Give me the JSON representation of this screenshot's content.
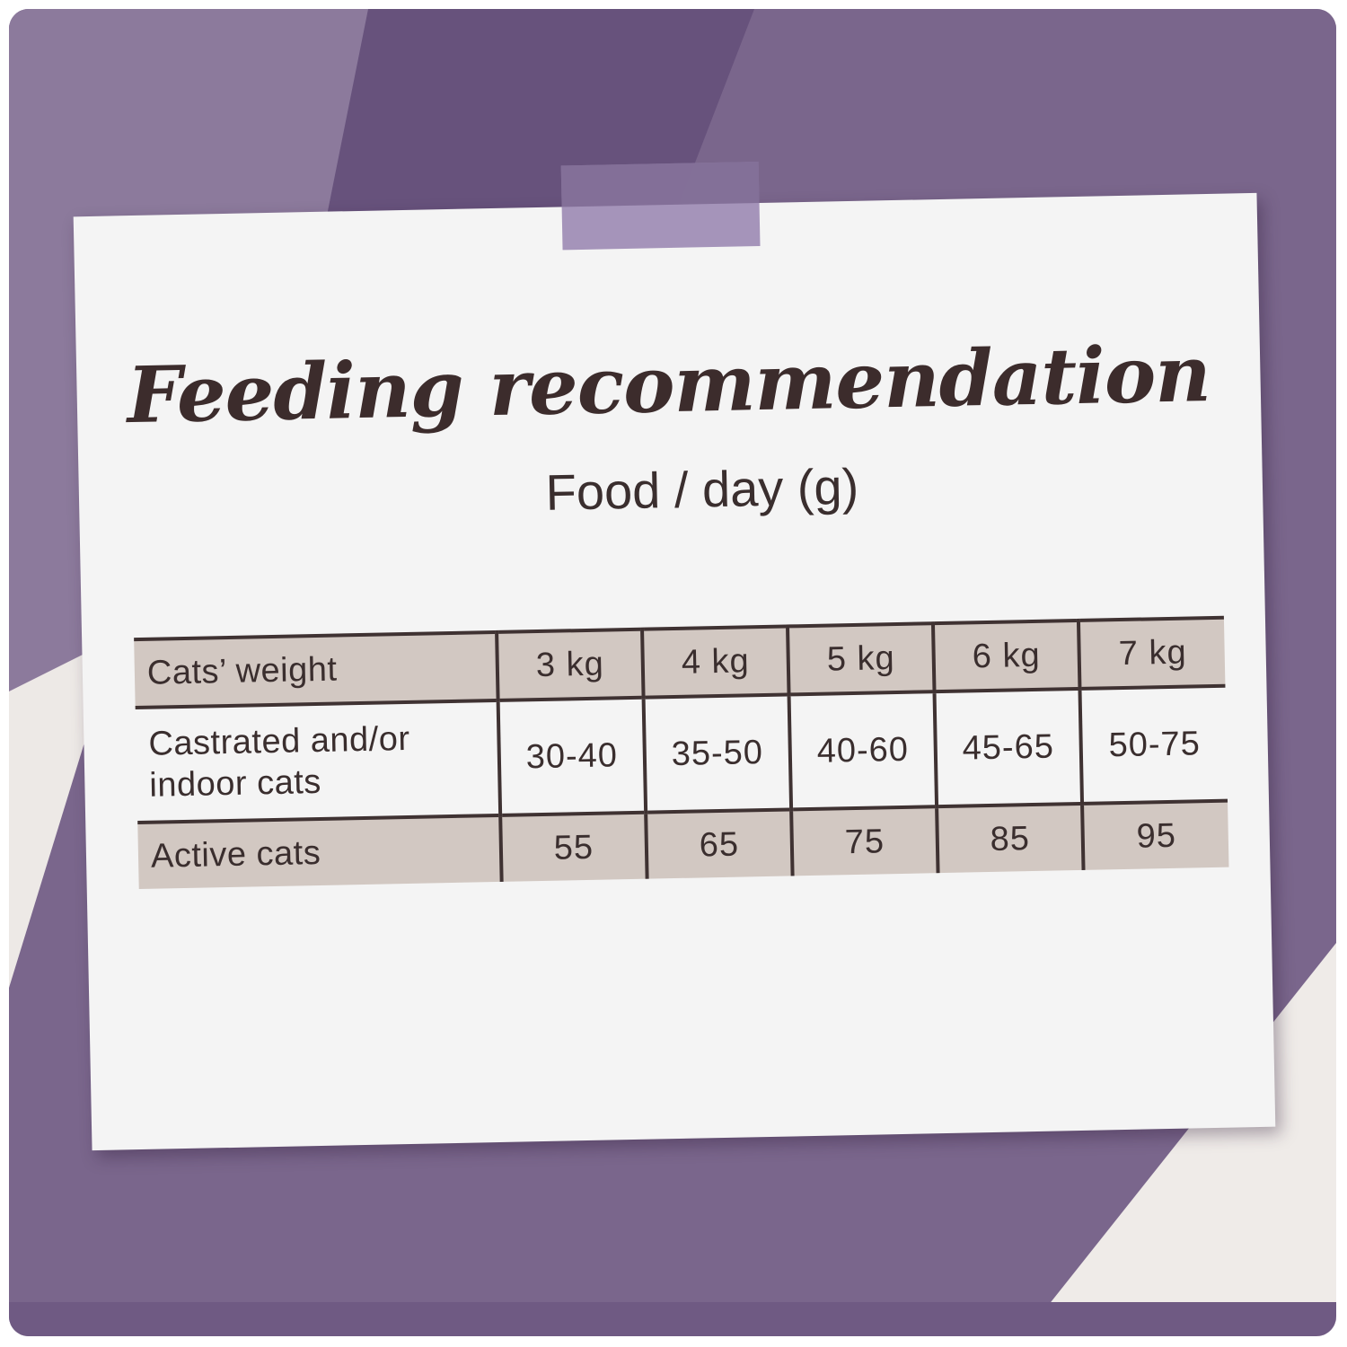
{
  "card": {
    "title": "Feeding recommendation",
    "subtitle": "Food / day (g)"
  },
  "table": {
    "header": {
      "label": "Cats’ weight",
      "weights": [
        "3 kg",
        "4 kg",
        "5 kg",
        "6 kg",
        "7 kg"
      ]
    },
    "rows": [
      {
        "label_line1": "Castrated and/or",
        "label_line2": "indoor cats",
        "values": [
          "30-40",
          "35-50",
          "40-60",
          "45-65",
          "50-75"
        ]
      },
      {
        "label_line1": "Active cats",
        "values": [
          "55",
          "65",
          "75",
          "85",
          "95"
        ]
      }
    ]
  },
  "colors": {
    "purple_dark": "#65517c",
    "purple_mid": "#7a668c",
    "purple_light": "#a08eb6",
    "card": "#f4f4f4",
    "table_fill": "#d2c8c2",
    "text": "#3a2e2e"
  }
}
